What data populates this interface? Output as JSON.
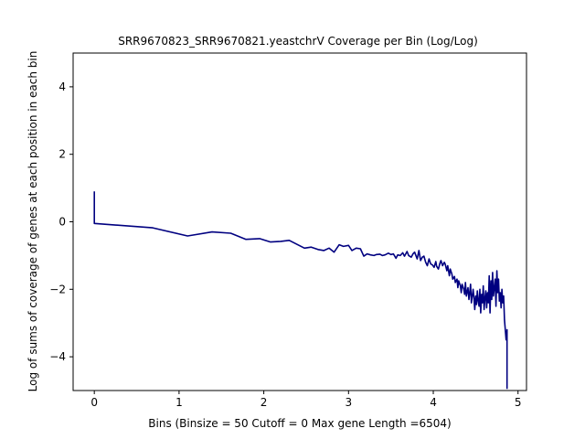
{
  "chart_data": {
    "type": "line",
    "title": "SRR9670823_SRR9670821.yeastchrV Coverage per Bin (Log/Log)",
    "xlabel": "Bins  (Binsize = 50 Cutoff = 0 Max gene Length =6504)",
    "ylabel": "Log of sums of coverage of genes at each position in each bin",
    "xlim": [
      -0.25,
      5.1
    ],
    "ylim": [
      -5,
      5
    ],
    "xticks": [
      0,
      1,
      2,
      3,
      4,
      5
    ],
    "yticks": [
      -4,
      -2,
      0,
      2,
      4
    ],
    "line_color": "#000080",
    "grid": false,
    "series": [
      {
        "x": [
          0,
          0,
          0.69,
          1.1,
          1.39,
          1.61,
          1.79,
          1.95,
          2.08,
          2.2,
          2.3,
          2.4,
          2.48,
          2.56,
          2.64,
          2.71,
          2.77,
          2.83,
          2.89,
          2.94,
          3.0,
          3.04,
          3.09,
          3.14,
          3.18,
          3.22,
          3.26,
          3.3,
          3.33,
          3.37,
          3.4,
          3.43,
          3.47,
          3.5,
          3.53,
          3.56,
          3.58,
          3.61,
          3.64,
          3.66,
          3.69,
          3.71,
          3.74,
          3.76,
          3.78,
          3.81,
          3.83,
          3.85,
          3.87,
          3.89,
          3.91,
          3.93,
          3.95,
          3.97,
          3.99,
          4.01,
          4.03,
          4.04,
          4.06,
          4.08,
          4.09,
          4.11,
          4.13,
          4.14,
          4.16,
          4.17,
          4.19,
          4.2,
          4.22,
          4.23,
          4.25,
          4.26,
          4.28,
          4.29,
          4.3,
          4.32,
          4.33,
          4.34,
          4.36,
          4.37,
          4.38,
          4.39,
          4.41,
          4.42,
          4.43,
          4.44,
          4.45,
          4.47,
          4.48,
          4.49,
          4.5,
          4.51,
          4.52,
          4.53,
          4.54,
          4.55,
          4.56,
          4.57,
          4.58,
          4.59,
          4.6,
          4.61,
          4.62,
          4.63,
          4.64,
          4.65,
          4.66,
          4.67,
          4.68,
          4.69,
          4.7,
          4.71,
          4.72,
          4.73,
          4.74,
          4.75,
          4.76,
          4.77,
          4.78,
          4.79,
          4.8,
          4.81,
          4.82,
          4.83,
          4.84,
          4.85,
          4.86,
          4.87,
          4.87
        ],
        "values": [
          0.9,
          -0.05,
          -0.18,
          -0.42,
          -0.3,
          -0.34,
          -0.52,
          -0.5,
          -0.6,
          -0.58,
          -0.55,
          -0.68,
          -0.78,
          -0.75,
          -0.82,
          -0.85,
          -0.78,
          -0.9,
          -0.68,
          -0.73,
          -0.7,
          -0.85,
          -0.78,
          -0.8,
          -1.02,
          -0.95,
          -0.98,
          -1.0,
          -0.97,
          -0.96,
          -1.0,
          -0.98,
          -0.93,
          -0.97,
          -0.95,
          -1.08,
          -0.98,
          -1.0,
          -0.92,
          -1.02,
          -0.88,
          -1.0,
          -1.05,
          -0.95,
          -0.9,
          -1.1,
          -0.85,
          -1.15,
          -1.05,
          -1.02,
          -1.2,
          -1.3,
          -1.1,
          -1.25,
          -1.28,
          -1.35,
          -1.18,
          -1.32,
          -1.4,
          -1.22,
          -1.15,
          -1.3,
          -1.2,
          -1.25,
          -1.45,
          -1.3,
          -1.6,
          -1.4,
          -1.55,
          -1.7,
          -1.62,
          -1.8,
          -1.7,
          -1.95,
          -1.75,
          -1.9,
          -2.1,
          -1.85,
          -2.0,
          -2.15,
          -1.8,
          -2.2,
          -1.95,
          -2.3,
          -2.1,
          -1.85,
          -2.4,
          -2.0,
          -2.25,
          -2.6,
          -2.2,
          -2.45,
          -2.05,
          -2.35,
          -2.5,
          -2.0,
          -2.7,
          -2.15,
          -2.4,
          -1.9,
          -2.6,
          -2.25,
          -2.05,
          -2.55,
          -2.1,
          -2.4,
          -1.6,
          -2.7,
          -1.75,
          -2.3,
          -1.5,
          -2.2,
          -1.95,
          -1.7,
          -2.5,
          -1.45,
          -2.1,
          -1.7,
          -2.35,
          -2.1,
          -2.55,
          -2.0,
          -2.4,
          -2.2,
          -2.9,
          -3.2,
          -3.5,
          -3.2,
          -4.95
        ]
      }
    ]
  }
}
